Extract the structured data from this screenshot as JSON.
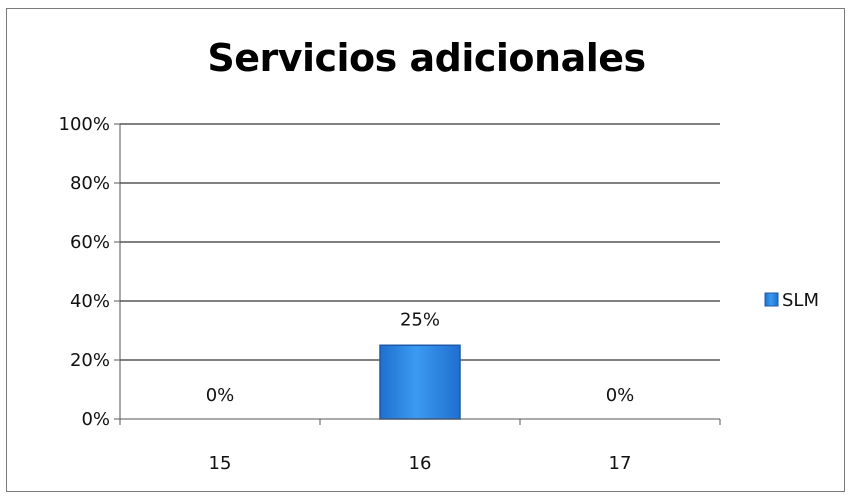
{
  "chart_data": {
    "type": "bar",
    "title": "Servicios adicionales",
    "xlabel": "",
    "ylabel": "",
    "categories": [
      "15",
      "16",
      "17"
    ],
    "series": [
      {
        "name": "SLM",
        "values": [
          0,
          25,
          0
        ],
        "data_labels": [
          "0%",
          "25%",
          "0%"
        ]
      }
    ],
    "ylim": [
      0,
      100
    ],
    "y_ticks": [
      "0%",
      "20%",
      "40%",
      "60%",
      "80%",
      "100%"
    ],
    "grid": true,
    "legend_position": "right",
    "colors": {
      "bar_fill": "#2e8be6",
      "bar_stroke": "#1c5aa8",
      "grid": "#000000",
      "frame": "#7a7a7a"
    }
  }
}
